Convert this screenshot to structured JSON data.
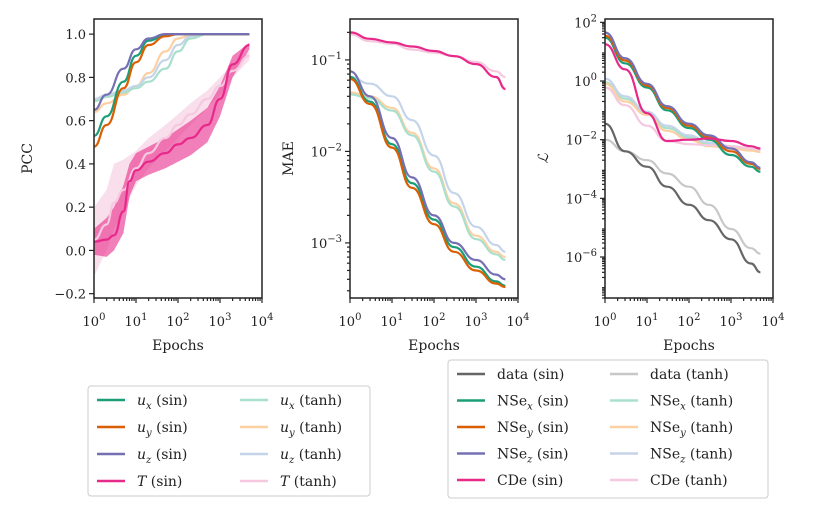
{
  "chart_data": [
    {
      "type": "line",
      "name": "pcc-panel",
      "ylabel": "PCC",
      "xlabel": "Epochs",
      "xscale": "log",
      "yscale": "linear",
      "xlim": [
        1,
        10000
      ],
      "ylim": [
        -0.22,
        1.07
      ],
      "x_ticks": [
        1,
        10,
        100,
        1000,
        10000
      ],
      "x_tick_labels": [
        "10^0",
        "10^1",
        "10^2",
        "10^3",
        "10^4"
      ],
      "y_ticks": [
        -0.2,
        0.0,
        0.2,
        0.4,
        0.6,
        0.8,
        1.0
      ],
      "y_tick_labels": [
        "−0.2",
        "0.0",
        "0.2",
        "0.4",
        "0.6",
        "0.8",
        "1.0"
      ],
      "series": [
        {
          "name": "u_y (tanh)",
          "color": "#fdd0a2",
          "x": [
            1,
            2,
            5,
            10,
            20,
            50,
            100,
            200,
            500,
            1000,
            5000
          ],
          "y": [
            0.64,
            0.68,
            0.72,
            0.76,
            0.82,
            0.92,
            0.98,
            0.995,
            1.0,
            1.0,
            1.0
          ]
        },
        {
          "name": "u_z (tanh)",
          "color": "#c6d4ea",
          "x": [
            1,
            2,
            5,
            10,
            20,
            50,
            100,
            200,
            500,
            1000,
            5000
          ],
          "y": [
            0.7,
            0.72,
            0.74,
            0.76,
            0.8,
            0.88,
            0.95,
            0.99,
            1.0,
            1.0,
            1.0
          ]
        },
        {
          "name": "u_x (tanh)",
          "color": "#a8e0cc",
          "x": [
            1,
            2,
            5,
            10,
            20,
            50,
            100,
            200,
            500,
            1000,
            5000
          ],
          "y": [
            0.69,
            0.71,
            0.73,
            0.75,
            0.78,
            0.84,
            0.92,
            0.98,
            1.0,
            1.0,
            1.0
          ]
        },
        {
          "name": "T (tanh)",
          "color": "#f5c8e0",
          "x": [
            1,
            2,
            3,
            5,
            10,
            20,
            50,
            100,
            200,
            500,
            1000,
            2000,
            5000
          ],
          "y": [
            0.05,
            0.12,
            0.22,
            0.28,
            0.38,
            0.45,
            0.52,
            0.58,
            0.63,
            0.7,
            0.76,
            0.83,
            0.9
          ],
          "band_low": [
            -0.12,
            0.0,
            0.1,
            0.18,
            0.3,
            0.38,
            0.46,
            0.52,
            0.58,
            0.66,
            0.72,
            0.8,
            0.88
          ],
          "band_high": [
            0.2,
            0.28,
            0.4,
            0.42,
            0.46,
            0.52,
            0.58,
            0.63,
            0.68,
            0.74,
            0.8,
            0.86,
            0.92
          ]
        },
        {
          "name": "u_x (sin)",
          "color": "#1b9e77",
          "x": [
            1,
            2,
            5,
            10,
            20,
            50,
            100,
            200,
            500,
            5000
          ],
          "y": [
            0.53,
            0.62,
            0.78,
            0.9,
            0.97,
            0.995,
            1.0,
            1.0,
            1.0,
            1.0
          ]
        },
        {
          "name": "u_y (sin)",
          "color": "#d95f02",
          "x": [
            1,
            2,
            5,
            10,
            20,
            50,
            100,
            200,
            500,
            5000
          ],
          "y": [
            0.48,
            0.58,
            0.75,
            0.87,
            0.95,
            0.99,
            1.0,
            1.0,
            1.0,
            1.0
          ]
        },
        {
          "name": "u_z (sin)",
          "color": "#7570b3",
          "x": [
            1,
            2,
            5,
            10,
            20,
            50,
            100,
            200,
            500,
            5000
          ],
          "y": [
            0.65,
            0.72,
            0.84,
            0.93,
            0.98,
            1.0,
            1.0,
            1.0,
            1.0,
            1.0
          ]
        },
        {
          "name": "T (sin)",
          "color": "#e7298a",
          "x": [
            1,
            2,
            3,
            5,
            7,
            10,
            20,
            50,
            100,
            200,
            500,
            1000,
            2000,
            5000
          ],
          "y": [
            0.04,
            0.05,
            0.07,
            0.18,
            0.32,
            0.37,
            0.41,
            0.45,
            0.49,
            0.52,
            0.58,
            0.7,
            0.86,
            0.95
          ],
          "band_low": [
            -0.02,
            -0.03,
            0.0,
            0.08,
            0.25,
            0.32,
            0.35,
            0.38,
            0.41,
            0.44,
            0.5,
            0.62,
            0.8,
            0.93
          ],
          "band_high": [
            0.1,
            0.15,
            0.2,
            0.3,
            0.4,
            0.45,
            0.48,
            0.52,
            0.56,
            0.6,
            0.66,
            0.76,
            0.9,
            0.96
          ]
        }
      ]
    },
    {
      "type": "line",
      "name": "mae-panel",
      "ylabel": "MAE",
      "xlabel": "Epochs",
      "xscale": "log",
      "yscale": "log",
      "xlim": [
        1,
        10000
      ],
      "ylim": [
        0.00025,
        0.28
      ],
      "x_ticks": [
        1,
        10,
        100,
        1000,
        10000
      ],
      "x_tick_labels": [
        "10^0",
        "10^1",
        "10^2",
        "10^3",
        "10^4"
      ],
      "y_ticks": [
        0.001,
        0.01,
        0.1
      ],
      "y_tick_labels": [
        "10^-3",
        "10^-2",
        "10^-1"
      ],
      "series": [
        {
          "name": "u_z (tanh)",
          "color": "#c6d4ea",
          "x": [
            1,
            3,
            10,
            30,
            100,
            300,
            1000,
            3000,
            5000
          ],
          "y": [
            0.065,
            0.055,
            0.04,
            0.022,
            0.009,
            0.0035,
            0.0015,
            0.00095,
            0.0008
          ]
        },
        {
          "name": "u_y (tanh)",
          "color": "#fdd0a2",
          "x": [
            1,
            3,
            10,
            30,
            100,
            300,
            1000,
            3000,
            5000
          ],
          "y": [
            0.044,
            0.04,
            0.03,
            0.016,
            0.0065,
            0.0027,
            0.0012,
            0.0008,
            0.0007
          ]
        },
        {
          "name": "u_x (tanh)",
          "color": "#a8e0cc",
          "x": [
            1,
            3,
            10,
            30,
            100,
            300,
            1000,
            3000,
            5000
          ],
          "y": [
            0.042,
            0.038,
            0.028,
            0.015,
            0.006,
            0.0025,
            0.0011,
            0.00075,
            0.00065
          ]
        },
        {
          "name": "T (tanh)",
          "color": "#f5c8e0",
          "x": [
            1,
            3,
            10,
            30,
            100,
            300,
            1000,
            3000,
            5000
          ],
          "y": [
            0.19,
            0.16,
            0.15,
            0.13,
            0.12,
            0.11,
            0.095,
            0.075,
            0.065
          ]
        },
        {
          "name": "u_x (sin)",
          "color": "#1b9e77",
          "x": [
            1,
            3,
            10,
            30,
            100,
            300,
            1000,
            3000,
            5000
          ],
          "y": [
            0.065,
            0.035,
            0.012,
            0.0045,
            0.0018,
            0.0009,
            0.00055,
            0.00038,
            0.00034
          ]
        },
        {
          "name": "u_y (sin)",
          "color": "#d95f02",
          "x": [
            1,
            3,
            10,
            30,
            100,
            300,
            1000,
            3000,
            5000
          ],
          "y": [
            0.062,
            0.033,
            0.011,
            0.004,
            0.0016,
            0.0008,
            0.0005,
            0.00036,
            0.00033
          ]
        },
        {
          "name": "u_z (sin)",
          "color": "#7570b3",
          "x": [
            1,
            3,
            10,
            30,
            100,
            300,
            1000,
            3000,
            5000
          ],
          "y": [
            0.075,
            0.04,
            0.014,
            0.0052,
            0.002,
            0.001,
            0.00065,
            0.00045,
            0.0004
          ]
        },
        {
          "name": "T (sin)",
          "color": "#e7298a",
          "x": [
            1,
            3,
            10,
            30,
            100,
            300,
            1000,
            3000,
            5000
          ],
          "y": [
            0.2,
            0.17,
            0.155,
            0.14,
            0.125,
            0.11,
            0.09,
            0.065,
            0.048
          ]
        }
      ]
    },
    {
      "type": "line",
      "name": "loss-panel",
      "ylabel": "ℒ",
      "xlabel": "Epochs",
      "xscale": "log",
      "yscale": "log",
      "xlim": [
        1,
        10000
      ],
      "ylim": [
        4e-08,
        130
      ],
      "x_ticks": [
        1,
        10,
        100,
        1000,
        10000
      ],
      "x_tick_labels": [
        "10^0",
        "10^1",
        "10^2",
        "10^3",
        "10^4"
      ],
      "y_ticks": [
        1e-06,
        0.0001,
        0.01,
        1,
        100
      ],
      "y_tick_labels": [
        "10^-6",
        "10^-4",
        "10^-2",
        "10^0",
        "10^2"
      ],
      "series": [
        {
          "name": "data (tanh)",
          "color": "#c8c8c8",
          "x": [
            1,
            3,
            10,
            30,
            100,
            300,
            1000,
            3000,
            5000
          ],
          "y": [
            0.01,
            0.004,
            0.002,
            0.0007,
            0.00025,
            6e-05,
            9e-06,
            2e-06,
            1.3e-06
          ]
        },
        {
          "name": "data (sin)",
          "color": "#666666",
          "x": [
            1,
            3,
            10,
            30,
            100,
            300,
            1000,
            3000,
            5000
          ],
          "y": [
            0.035,
            0.004,
            0.0012,
            0.00025,
            6e-05,
            1.8e-05,
            4e-06,
            6e-07,
            3e-07
          ]
        },
        {
          "name": "NSe_x (tanh)",
          "color": "#a8e0cc",
          "x": [
            1,
            3,
            10,
            30,
            100,
            300,
            1000,
            3000,
            5000
          ],
          "y": [
            0.9,
            0.25,
            0.08,
            0.025,
            0.012,
            0.007,
            0.0055,
            0.0045,
            0.004
          ]
        },
        {
          "name": "NSe_y (tanh)",
          "color": "#fdd0a2",
          "x": [
            1,
            3,
            10,
            30,
            100,
            300,
            1000,
            3000,
            5000
          ],
          "y": [
            0.8,
            0.2,
            0.07,
            0.02,
            0.01,
            0.006,
            0.005,
            0.0042,
            0.0038
          ]
        },
        {
          "name": "NSe_z (tanh)",
          "color": "#c6d4ea",
          "x": [
            1,
            3,
            10,
            30,
            100,
            300,
            1000,
            3000,
            5000
          ],
          "y": [
            1.2,
            0.3,
            0.09,
            0.03,
            0.014,
            0.008,
            0.006,
            0.005,
            0.0045
          ]
        },
        {
          "name": "CDe (tanh)",
          "color": "#f5c8e0",
          "x": [
            1,
            3,
            10,
            30,
            100,
            300,
            1000,
            3000,
            5000
          ],
          "y": [
            0.6,
            0.15,
            0.03,
            0.009,
            0.007,
            0.0065,
            0.006,
            0.005,
            0.0045
          ]
        },
        {
          "name": "NSe_x (sin)",
          "color": "#1b9e77",
          "x": [
            1,
            3,
            10,
            30,
            100,
            300,
            1000,
            3000,
            5000
          ],
          "y": [
            30,
            4,
            0.6,
            0.1,
            0.025,
            0.01,
            0.003,
            0.0012,
            0.0008
          ]
        },
        {
          "name": "NSe_y (sin)",
          "color": "#d95f02",
          "x": [
            1,
            3,
            10,
            30,
            100,
            300,
            1000,
            3000,
            5000
          ],
          "y": [
            35,
            5,
            0.7,
            0.12,
            0.03,
            0.012,
            0.004,
            0.0015,
            0.001
          ]
        },
        {
          "name": "NSe_z (sin)",
          "color": "#7570b3",
          "x": [
            1,
            3,
            10,
            30,
            100,
            300,
            1000,
            3000,
            5000
          ],
          "y": [
            45,
            6,
            0.8,
            0.14,
            0.035,
            0.014,
            0.005,
            0.0017,
            0.0011
          ]
        },
        {
          "name": "CDe (sin)",
          "color": "#e7298a",
          "x": [
            1,
            3,
            10,
            30,
            100,
            300,
            1000,
            3000,
            5000
          ],
          "y": [
            18,
            2.5,
            0.08,
            0.009,
            0.01,
            0.011,
            0.009,
            0.006,
            0.005
          ]
        }
      ]
    }
  ],
  "legend_left": {
    "entries": [
      {
        "var": "u",
        "sub": "x",
        "suffix": " (sin)",
        "color": "#1b9e77"
      },
      {
        "var": "u",
        "sub": "y",
        "suffix": " (sin)",
        "color": "#d95f02"
      },
      {
        "var": "u",
        "sub": "z",
        "suffix": " (sin)",
        "color": "#7570b3"
      },
      {
        "var": "T",
        "sub": "",
        "suffix": " (sin)",
        "color": "#e7298a"
      },
      {
        "var": "u",
        "sub": "x",
        "suffix": " (tanh)",
        "color": "#a8e0cc"
      },
      {
        "var": "u",
        "sub": "y",
        "suffix": " (tanh)",
        "color": "#fdd0a2"
      },
      {
        "var": "u",
        "sub": "z",
        "suffix": " (tanh)",
        "color": "#c6d4ea"
      },
      {
        "var": "T",
        "sub": "",
        "suffix": " (tanh)",
        "color": "#f5c8e0"
      }
    ]
  },
  "legend_right": {
    "entries": [
      {
        "var": "data",
        "sub": "",
        "suffix": " (sin)",
        "color": "#666666"
      },
      {
        "var": "NSe",
        "sub": "x",
        "suffix": " (sin)",
        "color": "#1b9e77"
      },
      {
        "var": "NSe",
        "sub": "y",
        "suffix": " (sin)",
        "color": "#d95f02"
      },
      {
        "var": "NSe",
        "sub": "z",
        "suffix": " (sin)",
        "color": "#7570b3"
      },
      {
        "var": "CDe",
        "sub": "",
        "suffix": " (sin)",
        "color": "#e7298a"
      },
      {
        "var": "data",
        "sub": "",
        "suffix": " (tanh)",
        "color": "#c8c8c8"
      },
      {
        "var": "NSe",
        "sub": "x",
        "suffix": " (tanh)",
        "color": "#a8e0cc"
      },
      {
        "var": "NSe",
        "sub": "y",
        "suffix": " (tanh)",
        "color": "#fdd0a2"
      },
      {
        "var": "NSe",
        "sub": "z",
        "suffix": " (tanh)",
        "color": "#c6d4ea"
      },
      {
        "var": "CDe",
        "sub": "",
        "suffix": " (tanh)",
        "color": "#f5c8e0"
      }
    ]
  }
}
